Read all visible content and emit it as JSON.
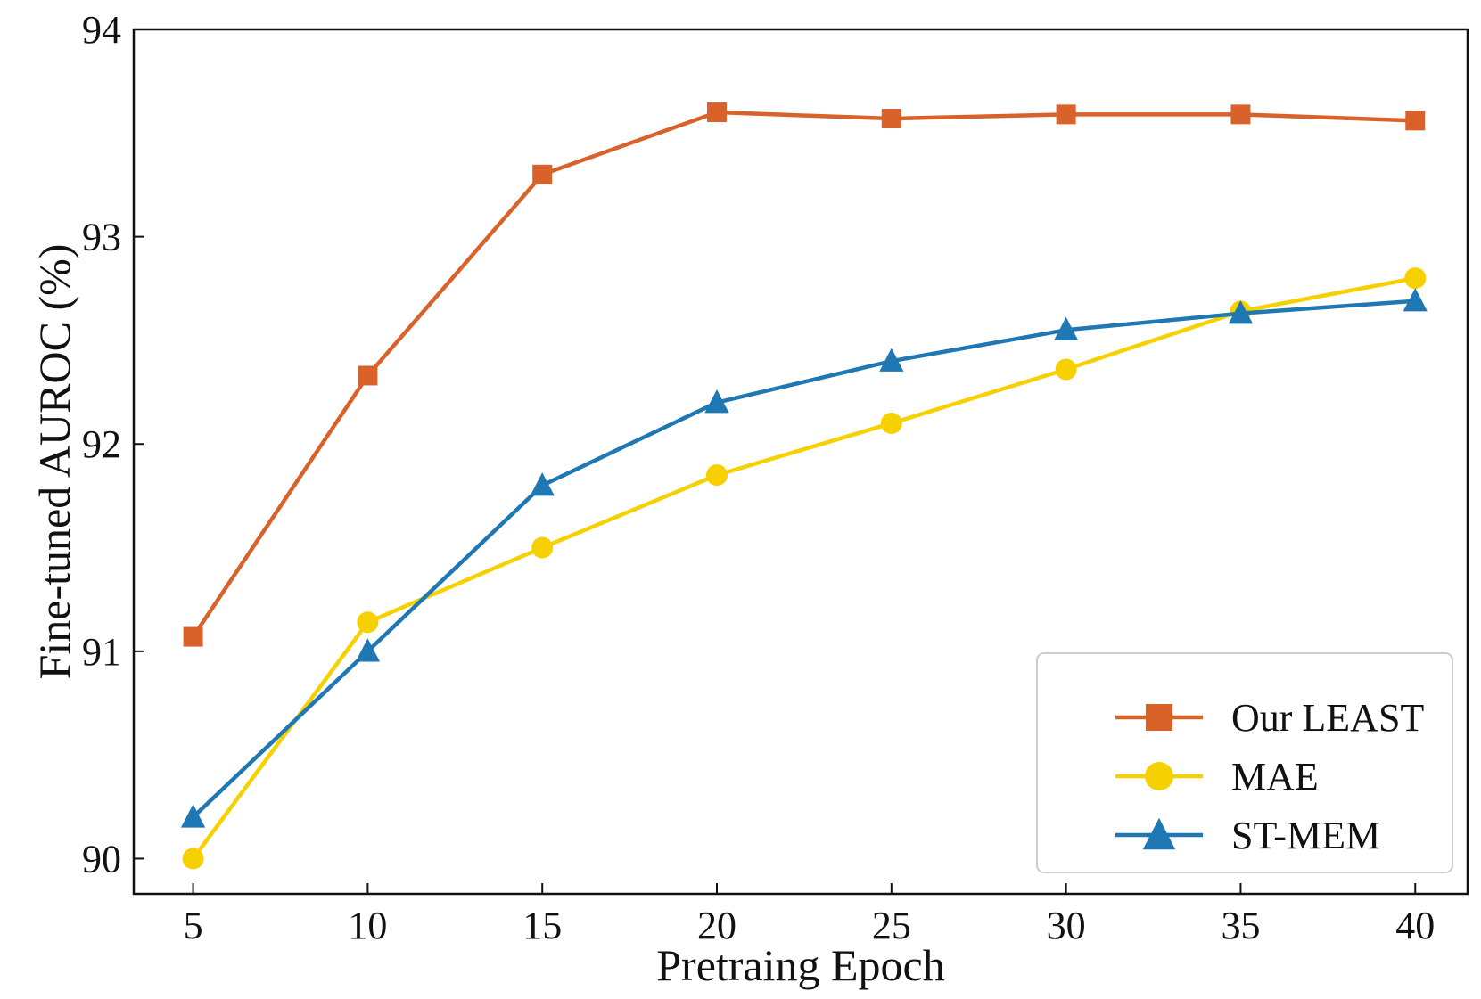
{
  "chart_data": {
    "type": "line",
    "x": [
      5,
      10,
      15,
      20,
      25,
      30,
      35,
      40
    ],
    "series": [
      {
        "name": "Our LEAST",
        "marker": "square",
        "color": "#d9622b",
        "values": [
          91.07,
          92.33,
          93.3,
          93.6,
          93.57,
          93.59,
          93.59,
          93.56
        ]
      },
      {
        "name": "MAE",
        "marker": "circle",
        "color": "#f7d000",
        "values": [
          90.0,
          91.14,
          91.5,
          91.85,
          92.1,
          92.36,
          92.64,
          92.8
        ]
      },
      {
        "name": "ST-MEM",
        "marker": "triangle",
        "color": "#1f77b4",
        "values": [
          90.2,
          91.0,
          91.8,
          92.2,
          92.4,
          92.55,
          92.63,
          92.69
        ]
      }
    ],
    "xlabel": "Pretraing Epoch",
    "ylabel": "Fine-tuned AUROC (%)",
    "xticks": [
      5,
      10,
      15,
      20,
      25,
      30,
      35,
      40
    ],
    "yticks": [
      90,
      91,
      92,
      93,
      94
    ],
    "xlim": [
      3.3,
      41.5
    ],
    "ylim": [
      89.83,
      94.0
    ],
    "grid": false,
    "legend_position": "lower-right"
  }
}
